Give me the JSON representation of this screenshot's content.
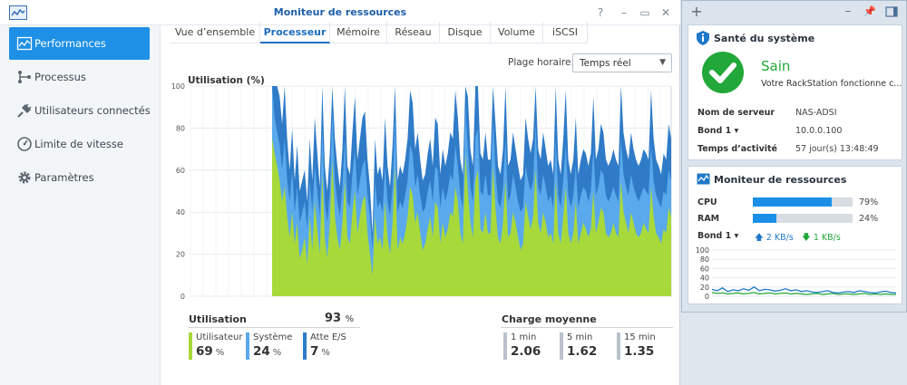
{
  "window": {
    "title": "Moniteur de ressources",
    "controls": [
      "?",
      "–",
      "▭",
      "✕"
    ]
  },
  "sidebar": {
    "items": [
      {
        "label": "Performances",
        "icon": "performance-chart-icon",
        "active": true
      },
      {
        "label": "Processus",
        "icon": "process-branch-icon",
        "active": false
      },
      {
        "label": "Utilisateurs connectés",
        "icon": "plug-icon",
        "active": false
      },
      {
        "label": "Limite de vitesse",
        "icon": "speedometer-icon",
        "active": false
      },
      {
        "label": "Paramètres",
        "icon": "gear-icon",
        "active": false
      }
    ]
  },
  "tabs": [
    {
      "label": "Vue d’ensemble",
      "active": false
    },
    {
      "label": "Processeur",
      "active": true
    },
    {
      "label": "Mémoire",
      "active": false
    },
    {
      "label": "Réseau",
      "active": false
    },
    {
      "label": "Disque",
      "active": false
    },
    {
      "label": "Volume",
      "active": false
    },
    {
      "label": "iSCSI",
      "active": false
    }
  ],
  "time_range": {
    "label": "Plage horaire:",
    "value": "Temps réel"
  },
  "chart_data": {
    "type": "area",
    "title": "Utilisation (%)",
    "ylim": [
      0,
      100
    ],
    "y_ticks": [
      0,
      20,
      40,
      60,
      80,
      100
    ],
    "grid": true,
    "series": [
      {
        "color": "#a8d93a",
        "values": [
          75,
          68,
          62,
          55,
          45,
          52,
          38,
          28,
          40,
          25,
          35,
          18,
          22,
          28,
          15,
          38,
          22,
          45,
          32,
          20,
          58,
          28,
          18,
          35,
          65,
          38,
          28,
          22,
          35,
          55,
          28,
          25,
          40,
          50,
          30,
          38,
          45,
          48,
          30,
          20,
          10,
          38,
          25,
          28,
          22,
          45,
          28,
          20,
          35,
          62,
          22,
          28,
          25,
          30,
          38,
          52,
          48,
          35,
          40,
          30,
          22,
          25,
          32,
          38,
          28,
          45,
          42,
          25,
          35,
          28,
          32,
          40,
          38,
          52,
          45,
          30,
          25,
          68,
          50,
          35,
          28,
          55,
          60,
          32,
          30,
          40,
          30,
          30,
          62,
          42,
          28,
          25,
          35,
          55,
          28,
          30,
          40,
          35,
          28,
          22,
          25,
          45,
          38,
          32,
          38,
          60,
          35,
          30,
          40,
          35,
          28,
          30,
          25,
          55,
          30,
          25,
          38,
          52,
          30,
          25,
          30,
          45,
          25,
          30,
          35,
          32,
          28,
          32,
          50,
          30,
          35,
          42,
          40,
          30,
          28,
          30,
          35,
          30,
          28,
          55,
          40,
          35,
          30,
          40,
          35,
          30,
          28,
          30,
          35,
          32,
          30,
          52,
          38,
          30,
          28,
          25,
          32,
          30,
          42,
          38
        ]
      },
      {
        "color": "#5aa9ec",
        "values": [
          100,
          85,
          78,
          72,
          60,
          75,
          55,
          45,
          60,
          40,
          52,
          35,
          40,
          45,
          32,
          55,
          40,
          62,
          50,
          38,
          80,
          45,
          35,
          50,
          88,
          55,
          45,
          38,
          52,
          75,
          45,
          42,
          58,
          70,
          48,
          55,
          62,
          65,
          48,
          38,
          22,
          55,
          42,
          45,
          40,
          62,
          45,
          38,
          52,
          85,
          40,
          45,
          42,
          48,
          55,
          72,
          68,
          52,
          58,
          48,
          40,
          42,
          50,
          55,
          45,
          62,
          60,
          42,
          52,
          45,
          50,
          58,
          55,
          72,
          62,
          48,
          42,
          90,
          70,
          52,
          45,
          75,
          80,
          50,
          48,
          58,
          48,
          48,
          85,
          60,
          45,
          42,
          52,
          75,
          45,
          48,
          58,
          52,
          45,
          40,
          42,
          62,
          55,
          50,
          55,
          82,
          52,
          48,
          58,
          52,
          45,
          48,
          42,
          75,
          48,
          42,
          55,
          72,
          48,
          42,
          48,
          62,
          42,
          48,
          52,
          50,
          45,
          50,
          70,
          48,
          52,
          60,
          58,
          48,
          45,
          48,
          52,
          48,
          45,
          75,
          58,
          52,
          48,
          58,
          52,
          48,
          45,
          48,
          52,
          50,
          48,
          72,
          55,
          48,
          45,
          42,
          50,
          48,
          60,
          55
        ]
      },
      {
        "color": "#2f7bc8",
        "values": [
          100,
          100,
          100,
          95,
          82,
          100,
          75,
          60,
          80,
          55,
          72,
          50,
          55,
          60,
          45,
          75,
          55,
          85,
          68,
          52,
          100,
          62,
          50,
          68,
          100,
          75,
          62,
          52,
          70,
          100,
          62,
          58,
          78,
          95,
          65,
          75,
          85,
          88,
          65,
          52,
          30,
          75,
          58,
          62,
          55,
          85,
          62,
          52,
          72,
          100,
          55,
          62,
          58,
          65,
          75,
          98,
          92,
          70,
          78,
          65,
          55,
          58,
          68,
          75,
          62,
          85,
          82,
          58,
          70,
          62,
          68,
          78,
          75,
          98,
          85,
          65,
          58,
          100,
          95,
          70,
          62,
          100,
          100,
          68,
          65,
          78,
          65,
          65,
          100,
          82,
          62,
          58,
          70,
          100,
          62,
          65,
          78,
          70,
          62,
          55,
          58,
          85,
          75,
          68,
          75,
          100,
          70,
          65,
          78,
          70,
          62,
          65,
          58,
          100,
          65,
          58,
          75,
          98,
          65,
          58,
          65,
          85,
          58,
          65,
          70,
          68,
          62,
          68,
          95,
          65,
          70,
          82,
          78,
          65,
          62,
          65,
          70,
          65,
          62,
          100,
          78,
          70,
          65,
          78,
          70,
          65,
          62,
          65,
          70,
          68,
          65,
          98,
          75,
          65,
          62,
          58,
          68,
          65,
          82,
          75
        ]
      }
    ]
  },
  "summary": {
    "utilisation": {
      "title": "Utilisation",
      "value": "93",
      "unit": "%"
    },
    "stats": [
      {
        "label": "Utilisateur",
        "value": "69",
        "unit": "%",
        "color": "#a8d93a"
      },
      {
        "label": "Système",
        "value": "24",
        "unit": "%",
        "color": "#5aa9ec"
      },
      {
        "label": "Atte E/S",
        "value": "7",
        "unit": "%",
        "color": "#2f7bc8"
      }
    ],
    "load": {
      "title": "Charge moyenne",
      "items": [
        {
          "label": "1 min",
          "value": "2.06"
        },
        {
          "label": "5 min",
          "value": "1.62"
        },
        {
          "label": "15 min",
          "value": "1.35"
        }
      ]
    }
  },
  "panel": {
    "health": {
      "title": "Santé du système",
      "status": "Sain",
      "message": "Votre RackStation fonctionne c...",
      "rows": [
        {
          "key": "Nom de serveur",
          "value": "NAS-ADSI"
        },
        {
          "key": "Bond 1 ▾",
          "value": "10.0.0.100"
        },
        {
          "key": "Temps d’activité",
          "value": "57 jour(s) 13:48:49"
        }
      ]
    },
    "resmon": {
      "title": "Moniteur de ressources",
      "cpu": {
        "label": "CPU",
        "percent": 79,
        "text": "79%"
      },
      "ram": {
        "label": "RAM",
        "percent": 24,
        "text": "24%"
      },
      "net": {
        "label": "Bond 1 ▾",
        "up": "2 KB/s",
        "down": "1 KB/s"
      },
      "mini_chart": {
        "y_ticks": [
          0,
          20,
          40,
          60,
          80,
          100
        ],
        "cpu": [
          15,
          12,
          18,
          10,
          14,
          12,
          16,
          13,
          20,
          12,
          15,
          14,
          11,
          13,
          16,
          12,
          14,
          10,
          12,
          9,
          8,
          10,
          12,
          8,
          7,
          9,
          10,
          8,
          12,
          10,
          8,
          7,
          9,
          11,
          8,
          7
        ],
        "net": [
          8,
          6,
          7,
          5,
          6,
          7,
          5,
          6,
          8,
          5,
          6,
          7,
          5,
          6,
          7,
          5,
          6,
          5,
          4,
          5,
          6,
          4,
          5,
          6,
          4,
          5,
          5,
          4,
          5,
          6,
          4,
          5,
          4,
          5,
          4,
          4
        ]
      }
    }
  }
}
